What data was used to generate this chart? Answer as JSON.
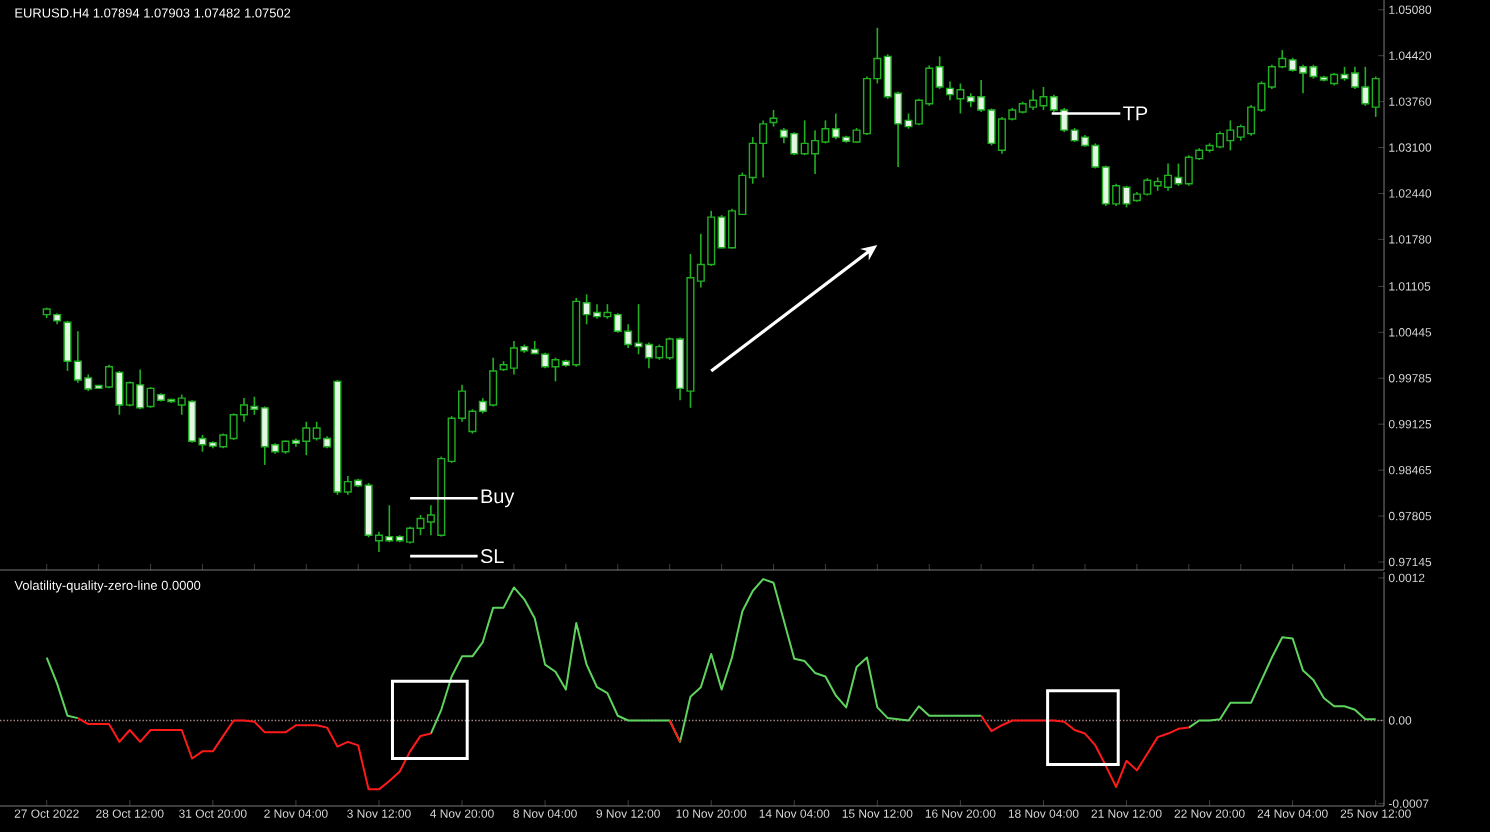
{
  "chart_data": [
    {
      "type": "candlestick",
      "title": "EURUSD.H4  1.07894 1.07903 1.07482 1.07502",
      "color": "#21b021",
      "tick_labels": "y",
      "categories": [
        null,
        null,
        null,
        null,
        null,
        null,
        null,
        null,
        null,
        null,
        null,
        null,
        null,
        null,
        null,
        null,
        null,
        null,
        null,
        null,
        null,
        null,
        null,
        null,
        null,
        null,
        null,
        null,
        null,
        null,
        null,
        null,
        null,
        null,
        null,
        null,
        null,
        null,
        null,
        null,
        null,
        null,
        null,
        null,
        null,
        null,
        null,
        null,
        null,
        null,
        null,
        null,
        null,
        null,
        null,
        null,
        null,
        null,
        null,
        null,
        null,
        null,
        null,
        null,
        null,
        null,
        null,
        null,
        null,
        null,
        null,
        null,
        null,
        null,
        null,
        null,
        null,
        null,
        null,
        null,
        null,
        null,
        null,
        null,
        null,
        null,
        null,
        null,
        null,
        null,
        null,
        null,
        null,
        null,
        null,
        null,
        null,
        null,
        null,
        null,
        null,
        null,
        null,
        null,
        null,
        null,
        null,
        null,
        null,
        null,
        null,
        null,
        null,
        null,
        null,
        null,
        null,
        null,
        null,
        null,
        null,
        null,
        null,
        null,
        null,
        null,
        null,
        null,
        null
      ],
      "ohlc": [
        [
          1.007,
          1.008,
          1.0065,
          1.0078
        ],
        [
          1.007,
          1.0072,
          1.0056,
          1.0061
        ],
        [
          1.0059,
          1.0061,
          0.9989,
          1.0003
        ],
        [
          1.0003,
          1.0046,
          0.9972,
          0.9976
        ],
        [
          0.9979,
          0.9984,
          0.996,
          0.9963
        ],
        [
          0.9968,
          0.9969,
          0.9963,
          0.9964
        ],
        [
          0.9966,
          0.9998,
          0.9964,
          0.9995
        ],
        [
          0.9987,
          0.9989,
          0.9926,
          0.994
        ],
        [
          0.994,
          0.9974,
          0.9938,
          0.9972
        ],
        [
          0.9969,
          0.9991,
          0.9934,
          0.9936
        ],
        [
          0.9938,
          0.9966,
          0.9936,
          0.9964
        ],
        [
          0.9955,
          0.9957,
          0.9945,
          0.9947
        ],
        [
          0.9948,
          0.9949,
          0.9943,
          0.9945
        ],
        [
          0.994,
          0.9955,
          0.9926,
          0.995
        ],
        [
          0.9945,
          0.9947,
          0.9886,
          0.9888
        ],
        [
          0.9892,
          0.9897,
          0.9873,
          0.9883
        ],
        [
          0.9886,
          0.9888,
          0.9878,
          0.9881
        ],
        [
          0.988,
          0.9899,
          0.9878,
          0.9897
        ],
        [
          0.9892,
          0.9928,
          0.989,
          0.9926
        ],
        [
          0.9926,
          0.995,
          0.9916,
          0.994
        ],
        [
          0.9938,
          0.9952,
          0.9926,
          0.9934
        ],
        [
          0.9936,
          0.9938,
          0.9854,
          0.988
        ],
        [
          0.9883,
          0.9885,
          0.987,
          0.9873
        ],
        [
          0.9873,
          0.9889,
          0.987,
          0.9888
        ],
        [
          0.9889,
          0.9892,
          0.988,
          0.9885
        ],
        [
          0.9888,
          0.9916,
          0.9868,
          0.9907
        ],
        [
          0.9892,
          0.9916,
          0.9889,
          0.9907
        ],
        [
          0.9892,
          0.9895,
          0.9878,
          0.988
        ],
        [
          0.9974,
          0.9976,
          0.9811,
          0.9815
        ],
        [
          0.9815,
          0.9838,
          0.9811,
          0.983
        ],
        [
          0.9832,
          0.9834,
          0.9822,
          0.9824
        ],
        [
          0.9825,
          0.9828,
          0.975,
          0.9753
        ],
        [
          0.9745,
          0.9758,
          0.9729,
          0.9753
        ],
        [
          0.9751,
          0.9796,
          0.9743,
          0.9745
        ],
        [
          0.9751,
          0.9753,
          0.9743,
          0.9745
        ],
        [
          0.9743,
          0.9765,
          0.9741,
          0.9763
        ],
        [
          0.9763,
          0.9782,
          0.9753,
          0.9777
        ],
        [
          0.9772,
          0.9796,
          0.9753,
          0.9782
        ],
        [
          0.9753,
          0.9866,
          0.9751,
          0.9863
        ],
        [
          0.9859,
          0.9924,
          0.9857,
          0.9921
        ],
        [
          0.9921,
          0.9969,
          0.9916,
          0.996
        ],
        [
          0.9902,
          0.9934,
          0.9899,
          0.9931
        ],
        [
          0.9945,
          0.995,
          0.9928,
          0.9931
        ],
        [
          0.994,
          1.0008,
          0.9938,
          0.9989
        ],
        [
          0.9991,
          1.0003,
          0.9989,
          0.9998
        ],
        [
          0.9993,
          1.0032,
          0.9984,
          1.0022
        ],
        [
          1.0024,
          1.0027,
          1.0015,
          1.0018
        ],
        [
          1.002,
          1.0032,
          1.0013,
          1.0014
        ],
        [
          1.0013,
          1.0015,
          0.9993,
          0.9995
        ],
        [
          0.9995,
          1.0008,
          0.9974,
          1.0005
        ],
        [
          1.0003,
          1.0005,
          0.9995,
          0.9997
        ],
        [
          0.9998,
          1.0094,
          0.9995,
          1.0089
        ],
        [
          1.0087,
          1.0099,
          1.0056,
          1.007
        ],
        [
          1.0073,
          1.0085,
          1.0064,
          1.0067
        ],
        [
          1.0067,
          1.0085,
          1.0064,
          1.0073
        ],
        [
          1.007,
          1.0072,
          1.0044,
          1.0046
        ],
        [
          1.0046,
          1.0056,
          1.0022,
          1.0027
        ],
        [
          1.0029,
          1.0085,
          1.0013,
          1.0024
        ],
        [
          1.0027,
          1.003,
          0.9993,
          1.0008
        ],
        [
          1.0008,
          1.0027,
          1.0005,
          1.0024
        ],
        [
          1.0008,
          1.0037,
          1.0005,
          1.0035
        ],
        [
          1.0035,
          1.0037,
          0.9947,
          0.9964
        ],
        [
          0.996,
          1.0157,
          0.9936,
          1.0123
        ],
        [
          1.0118,
          1.0186,
          1.0109,
          1.0142
        ],
        [
          1.0142,
          1.0219,
          1.014,
          1.021
        ],
        [
          1.021,
          1.0213,
          1.0165,
          1.0166
        ],
        [
          1.0166,
          1.0222,
          1.0165,
          1.0219
        ],
        [
          1.0214,
          1.0274,
          1.0213,
          1.027
        ],
        [
          1.0267,
          1.0325,
          1.0258,
          1.0316
        ],
        [
          1.0316,
          1.0349,
          1.0267,
          1.0344
        ],
        [
          1.0346,
          1.0364,
          1.034,
          1.0352
        ],
        [
          1.0335,
          1.0338,
          1.0316,
          1.0325
        ],
        [
          1.033,
          1.0332,
          1.0299,
          1.0301
        ],
        [
          1.0301,
          1.0349,
          1.0299,
          1.0316
        ],
        [
          1.0301,
          1.0335,
          1.0272,
          1.032
        ],
        [
          1.0318,
          1.0349,
          1.0316,
          1.0337
        ],
        [
          1.0337,
          1.0359,
          1.0322,
          1.0325
        ],
        [
          1.0325,
          1.0327,
          1.0317,
          1.0319
        ],
        [
          1.0318,
          1.0338,
          1.0317,
          1.0335
        ],
        [
          1.033,
          1.0412,
          1.0328,
          1.0409
        ],
        [
          1.0409,
          1.0482,
          1.0402,
          1.0438
        ],
        [
          1.0441,
          1.0444,
          1.038,
          1.0383
        ],
        [
          1.0388,
          1.039,
          1.0282,
          1.0344
        ],
        [
          1.0349,
          1.0359,
          1.0337,
          1.034
        ],
        [
          1.0344,
          1.038,
          1.0342,
          1.0378
        ],
        [
          1.0373,
          1.0428,
          1.037,
          1.0424
        ],
        [
          1.0426,
          1.0441,
          1.0394,
          1.0397
        ],
        [
          1.0395,
          1.0405,
          1.0378,
          1.0386
        ],
        [
          1.038,
          1.0402,
          1.0359,
          1.0393
        ],
        [
          1.0383,
          1.0388,
          1.0368,
          1.0376
        ],
        [
          1.0383,
          1.0407,
          1.0361,
          1.0364
        ],
        [
          1.0364,
          1.0366,
          1.0313,
          1.0316
        ],
        [
          1.0306,
          1.0354,
          1.0301,
          1.0351
        ],
        [
          1.0351,
          1.0367,
          1.0349,
          1.0364
        ],
        [
          1.0361,
          1.0376,
          1.0359,
          1.0373
        ],
        [
          1.0368,
          1.0393,
          1.0364,
          1.0378
        ],
        [
          1.037,
          1.0397,
          1.0364,
          1.0383
        ],
        [
          1.0383,
          1.0386,
          1.0361,
          1.0364
        ],
        [
          1.0364,
          1.0367,
          1.0332,
          1.0335
        ],
        [
          1.0335,
          1.0338,
          1.0318,
          1.032
        ],
        [
          1.0325,
          1.0328,
          1.0311,
          1.0313
        ],
        [
          1.0313,
          1.0316,
          1.028,
          1.0282
        ],
        [
          1.0282,
          1.0284,
          1.0226,
          1.0229
        ],
        [
          1.0229,
          1.0258,
          1.0226,
          1.0255
        ],
        [
          1.0253,
          1.0255,
          1.0224,
          1.0229
        ],
        [
          1.0234,
          1.0246,
          1.0232,
          1.0243
        ],
        [
          1.0243,
          1.0266,
          1.0241,
          1.0263
        ],
        [
          1.0255,
          1.0267,
          1.0248,
          1.0261
        ],
        [
          1.0253,
          1.0287,
          1.0248,
          1.027
        ],
        [
          1.0267,
          1.0287,
          1.0255,
          1.0258
        ],
        [
          1.0258,
          1.0299,
          1.0255,
          1.0296
        ],
        [
          1.0294,
          1.0309,
          1.0292,
          1.0306
        ],
        [
          1.0306,
          1.0316,
          1.0303,
          1.0313
        ],
        [
          1.0311,
          1.0333,
          1.0309,
          1.033
        ],
        [
          1.032,
          1.0349,
          1.0306,
          1.0335
        ],
        [
          1.0325,
          1.0343,
          1.032,
          1.034
        ],
        [
          1.033,
          1.0371,
          1.0327,
          1.0368
        ],
        [
          1.0364,
          1.0405,
          1.0361,
          1.0402
        ],
        [
          1.0397,
          1.0429,
          1.0394,
          1.0426
        ],
        [
          1.0426,
          1.045,
          1.0424,
          1.0438
        ],
        [
          1.0436,
          1.0439,
          1.0419,
          1.0421
        ],
        [
          1.0426,
          1.0429,
          1.0388,
          1.0417
        ],
        [
          1.0426,
          1.0429,
          1.0409,
          1.0412
        ],
        [
          1.0411,
          1.0413,
          1.0405,
          1.0407
        ],
        [
          1.0402,
          1.0417,
          1.0399,
          1.0415
        ],
        [
          1.0415,
          1.0426,
          1.0406,
          1.0409
        ],
        [
          1.0417,
          1.0426,
          1.0394,
          1.0397
        ],
        [
          1.0397,
          1.0426,
          1.037,
          1.0373
        ],
        [
          1.0368,
          1.0412,
          1.0354,
          1.0409
        ]
      ],
      "ylim": [
        0.9703,
        1.0522
      ],
      "yticks": [
        {
          "value": 1.0508,
          "label": "1.05080"
        },
        {
          "value": 1.0442,
          "label": "1.04420"
        },
        {
          "value": 1.0376,
          "label": "1.03760"
        },
        {
          "value": 1.031,
          "label": "1.03100"
        },
        {
          "value": 1.0244,
          "label": "1.02440"
        },
        {
          "value": 1.0178,
          "label": "1.01780"
        },
        {
          "value": 1.01105,
          "label": "1.01105"
        },
        {
          "value": 1.00445,
          "label": "1.00445"
        },
        {
          "value": 0.99785,
          "label": "0.99785"
        },
        {
          "value": 0.99125,
          "label": "0.99125"
        },
        {
          "value": 0.98465,
          "label": "0.98465"
        },
        {
          "value": 0.97805,
          "label": "0.97805"
        },
        {
          "value": 0.97145,
          "label": "0.97145"
        }
      ],
      "annotations": [
        "Buy",
        "SL",
        "TP"
      ]
    },
    {
      "type": "line",
      "title": "Volatility-quality-zero-line 0.0000",
      "categories": [
        "27 Oct 2022",
        null,
        null,
        null,
        null,
        null,
        null,
        null,
        "28 Oct 12:00",
        null,
        null,
        null,
        null,
        null,
        null,
        null,
        "31 Oct 20:00",
        null,
        null,
        null,
        null,
        null,
        null,
        null,
        "2 Nov 04:00",
        null,
        null,
        null,
        null,
        null,
        null,
        null,
        "3 Nov 12:00",
        null,
        null,
        null,
        null,
        null,
        null,
        null,
        "4 Nov 20:00",
        null,
        null,
        null,
        null,
        null,
        null,
        null,
        "8 Nov 04:00",
        null,
        null,
        null,
        null,
        null,
        null,
        null,
        "9 Nov 12:00",
        null,
        null,
        null,
        null,
        null,
        null,
        null,
        "10 Nov 20:00",
        null,
        null,
        null,
        null,
        null,
        null,
        null,
        "14 Nov 04:00",
        null,
        null,
        null,
        null,
        null,
        null,
        null,
        "15 Nov 12:00",
        null,
        null,
        null,
        null,
        null,
        null,
        null,
        "16 Nov 20:00",
        null,
        null,
        null,
        null,
        null,
        null,
        null,
        "18 Nov 04:00",
        null,
        null,
        null,
        null,
        null,
        null,
        null,
        "21 Nov 12:00",
        null,
        null,
        null,
        null,
        null,
        null,
        null,
        "22 Nov 20:00",
        null,
        null,
        null,
        null,
        null,
        null,
        null,
        "24 Nov 04:00",
        null,
        null,
        null,
        null,
        null,
        null,
        null,
        "25 Nov 12:00"
      ],
      "series": [
        {
          "color": "#5ed35e",
          "values": [
            0.00053,
            0.00031,
            4e-05,
            2e-05,
            null,
            null,
            null,
            null,
            null,
            null,
            null,
            null,
            null,
            null,
            null,
            null,
            null,
            null,
            null,
            null,
            null,
            null,
            null,
            null,
            null,
            null,
            null,
            null,
            null,
            null,
            null,
            null,
            null,
            null,
            null,
            null,
            null,
            -0.00011,
            9e-05,
            0.00037,
            0.00054,
            0.00054,
            0.00066,
            0.00095,
            0.00095,
            0.00112,
            0.00102,
            0.00086,
            0.00047,
            0.00041,
            0.00026,
            0.00082,
            0.00047,
            0.00028,
            0.00023,
            4e-05,
            0,
            0,
            0,
            0,
            0,
            -0.00018,
            0.0002,
            0.00028,
            0.00056,
            0.00026,
            0.00053,
            0.00092,
            0.00109,
            0.00119,
            0.00116,
            0.00084,
            0.00052,
            0.0005,
            0.0004,
            0.00037,
            0.00021,
            0.00011,
            0.00045,
            0.00053,
            0.00011,
            2e-05,
            1e-05,
            0,
            0.00012,
            4e-05,
            4e-05,
            4e-05,
            4e-05,
            4e-05,
            4e-05,
            null,
            null,
            null,
            null,
            null,
            null,
            null,
            null,
            null,
            null,
            null,
            null,
            null,
            null,
            null,
            null,
            null,
            null,
            null,
            -6e-05,
            0,
            0,
            1e-05,
            0.00015,
            0.00015,
            0.00015,
            0.00034,
            0.00053,
            0.0007,
            0.00069,
            0.00042,
            0.00034,
            0.00019,
            0.00012,
            0.00012,
            9e-05,
            1e-05,
            1e-05
          ]
        },
        {
          "color": "#ff1a1a",
          "values": [
            null,
            null,
            null,
            2e-05,
            -3e-05,
            -3e-05,
            -3e-05,
            -0.00018,
            -8e-05,
            -0.00018,
            -8e-05,
            -8e-05,
            -8e-05,
            -8e-05,
            -0.00032,
            -0.00026,
            -0.00026,
            -0.00013,
            0,
            0,
            -1e-05,
            -0.0001,
            -0.0001,
            -0.0001,
            -4e-05,
            -4e-05,
            -4e-05,
            -6e-05,
            -0.00022,
            -0.00018,
            -0.00021,
            -0.00058,
            -0.00058,
            -0.00051,
            -0.00043,
            -0.00026,
            -0.00013,
            -0.00011,
            null,
            null,
            null,
            null,
            null,
            null,
            null,
            null,
            null,
            null,
            null,
            null,
            null,
            null,
            null,
            null,
            null,
            null,
            null,
            null,
            null,
            null,
            0,
            -0.00018,
            null,
            null,
            null,
            null,
            null,
            null,
            null,
            null,
            null,
            null,
            null,
            null,
            null,
            null,
            null,
            null,
            null,
            null,
            null,
            null,
            null,
            null,
            null,
            null,
            null,
            null,
            null,
            null,
            4e-05,
            -9e-05,
            -4e-05,
            0,
            0,
            0,
            0,
            0,
            -1e-05,
            -8e-05,
            -0.00011,
            -0.00021,
            -0.00038,
            -0.00056,
            -0.00034,
            -0.00042,
            -0.00028,
            -0.00014,
            -0.00011,
            -7e-05,
            -6e-05,
            null,
            null,
            null,
            null,
            null,
            null,
            null,
            null,
            null,
            null,
            null,
            null,
            null,
            null,
            null,
            null,
            null,
            null
          ]
        }
      ],
      "ylim": [
        -0.00072,
        0.00125
      ],
      "yticks": [
        {
          "value": 0.0012,
          "label": "0.0012"
        },
        {
          "value": 0,
          "label": "0.00"
        },
        {
          "value": -0.0007,
          "label": "-0.0007"
        }
      ],
      "ref_lines": [
        {
          "axis": "y",
          "value": 0,
          "color": "#b08a8a",
          "line_style": "dotted"
        }
      ]
    }
  ]
}
